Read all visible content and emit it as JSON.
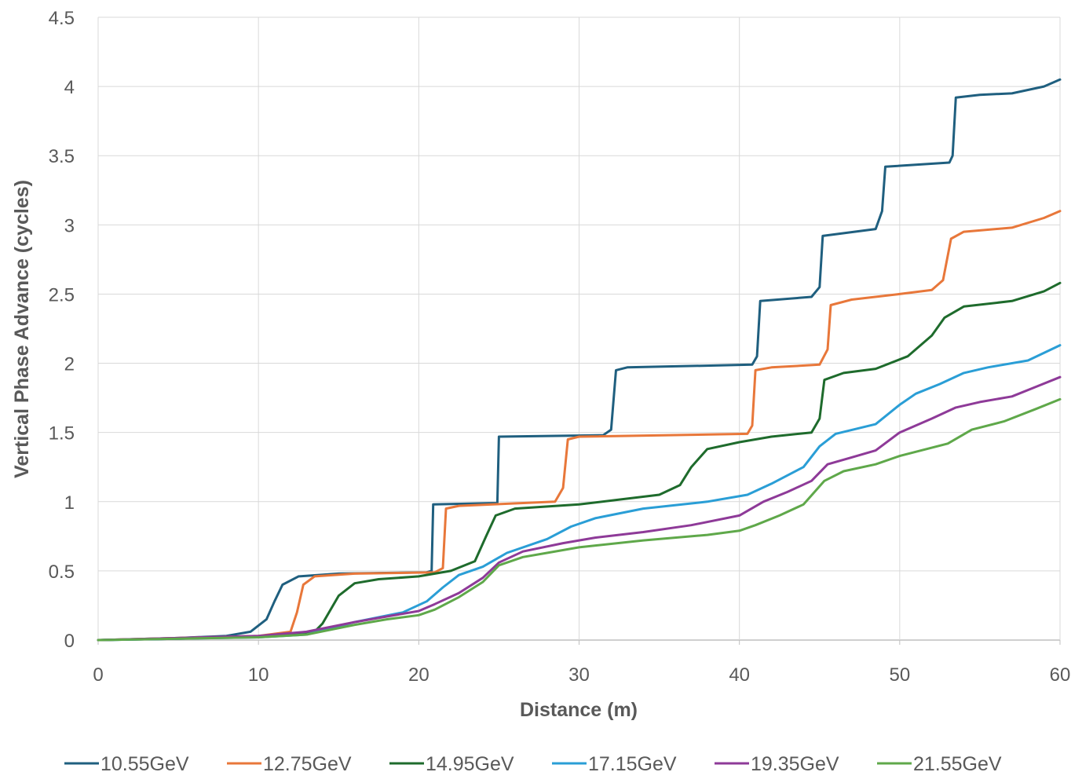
{
  "chart_data": {
    "type": "line",
    "title": "",
    "xlabel": "Distance (m)",
    "ylabel": "Vertical Phase Advance (cycles)",
    "xlim": [
      0,
      60
    ],
    "ylim": [
      0,
      4.5
    ],
    "x_ticks": [
      "0",
      "10",
      "20",
      "30",
      "40",
      "50",
      "60"
    ],
    "y_ticks": [
      "0",
      "0.5",
      "1",
      "1.5",
      "2",
      "2.5",
      "3",
      "3.5",
      "4",
      "4.5"
    ],
    "grid": "on",
    "legend_position": "bottom",
    "series": [
      {
        "name": "10.55GeV",
        "color": "#1f5f7f",
        "points": [
          [
            0,
            0
          ],
          [
            5,
            0.015
          ],
          [
            8,
            0.03
          ],
          [
            9.5,
            0.06
          ],
          [
            10.5,
            0.15
          ],
          [
            11,
            0.28
          ],
          [
            11.5,
            0.4
          ],
          [
            12.5,
            0.46
          ],
          [
            15,
            0.48
          ],
          [
            20.5,
            0.49
          ],
          [
            20.8,
            0.5
          ],
          [
            20.9,
            0.98
          ],
          [
            24.9,
            0.99
          ],
          [
            25.0,
            1.47
          ],
          [
            31.5,
            1.48
          ],
          [
            32.0,
            1.52
          ],
          [
            32.3,
            1.95
          ],
          [
            33,
            1.97
          ],
          [
            40.8,
            1.99
          ],
          [
            41.1,
            2.05
          ],
          [
            41.3,
            2.45
          ],
          [
            44.5,
            2.48
          ],
          [
            45.0,
            2.55
          ],
          [
            45.2,
            2.92
          ],
          [
            48.5,
            2.97
          ],
          [
            48.9,
            3.1
          ],
          [
            49.1,
            3.42
          ],
          [
            53.1,
            3.45
          ],
          [
            53.3,
            3.5
          ],
          [
            53.5,
            3.92
          ],
          [
            55,
            3.94
          ],
          [
            57,
            3.95
          ],
          [
            59,
            4.0
          ],
          [
            60,
            4.05
          ]
        ]
      },
      {
        "name": "12.75GeV",
        "color": "#e8773a",
        "points": [
          [
            0,
            0
          ],
          [
            5,
            0.015
          ],
          [
            10,
            0.03
          ],
          [
            12,
            0.06
          ],
          [
            12.4,
            0.2
          ],
          [
            12.8,
            0.4
          ],
          [
            13.5,
            0.46
          ],
          [
            16,
            0.48
          ],
          [
            21,
            0.49
          ],
          [
            21.5,
            0.52
          ],
          [
            21.7,
            0.95
          ],
          [
            22.5,
            0.97
          ],
          [
            28.5,
            1.0
          ],
          [
            29.0,
            1.1
          ],
          [
            29.3,
            1.45
          ],
          [
            30,
            1.47
          ],
          [
            40.5,
            1.49
          ],
          [
            40.8,
            1.55
          ],
          [
            41.0,
            1.95
          ],
          [
            42,
            1.97
          ],
          [
            45,
            1.99
          ],
          [
            45.5,
            2.1
          ],
          [
            45.7,
            2.42
          ],
          [
            47,
            2.46
          ],
          [
            50,
            2.5
          ],
          [
            52,
            2.53
          ],
          [
            52.7,
            2.6
          ],
          [
            53.2,
            2.9
          ],
          [
            54,
            2.95
          ],
          [
            57,
            2.98
          ],
          [
            59,
            3.05
          ],
          [
            60,
            3.1
          ]
        ]
      },
      {
        "name": "14.95GeV",
        "color": "#1e6b2c",
        "points": [
          [
            0,
            0
          ],
          [
            5,
            0.01
          ],
          [
            10,
            0.025
          ],
          [
            13.5,
            0.06
          ],
          [
            14,
            0.12
          ],
          [
            15,
            0.32
          ],
          [
            16,
            0.41
          ],
          [
            17.5,
            0.44
          ],
          [
            20,
            0.46
          ],
          [
            22,
            0.5
          ],
          [
            23.5,
            0.57
          ],
          [
            24.2,
            0.75
          ],
          [
            24.8,
            0.9
          ],
          [
            26,
            0.95
          ],
          [
            30,
            0.98
          ],
          [
            35,
            1.05
          ],
          [
            36.3,
            1.12
          ],
          [
            37,
            1.25
          ],
          [
            38,
            1.38
          ],
          [
            40,
            1.43
          ],
          [
            42,
            1.47
          ],
          [
            44.5,
            1.5
          ],
          [
            45.0,
            1.6
          ],
          [
            45.3,
            1.88
          ],
          [
            46.5,
            1.93
          ],
          [
            48.5,
            1.96
          ],
          [
            50.5,
            2.05
          ],
          [
            52,
            2.2
          ],
          [
            52.8,
            2.33
          ],
          [
            54,
            2.41
          ],
          [
            57,
            2.45
          ],
          [
            59,
            2.52
          ],
          [
            60,
            2.58
          ]
        ]
      },
      {
        "name": "17.15GeV",
        "color": "#2a9ed6",
        "points": [
          [
            0,
            0
          ],
          [
            10,
            0.02
          ],
          [
            13,
            0.04
          ],
          [
            16,
            0.13
          ],
          [
            19,
            0.2
          ],
          [
            20.5,
            0.28
          ],
          [
            21.5,
            0.38
          ],
          [
            22.5,
            0.47
          ],
          [
            24,
            0.53
          ],
          [
            25.5,
            0.63
          ],
          [
            28,
            0.73
          ],
          [
            29.5,
            0.82
          ],
          [
            31,
            0.88
          ],
          [
            34,
            0.95
          ],
          [
            38,
            1.0
          ],
          [
            40.5,
            1.05
          ],
          [
            42,
            1.13
          ],
          [
            44,
            1.25
          ],
          [
            45,
            1.4
          ],
          [
            46,
            1.49
          ],
          [
            48.5,
            1.56
          ],
          [
            50,
            1.7
          ],
          [
            51,
            1.78
          ],
          [
            52.5,
            1.85
          ],
          [
            54,
            1.93
          ],
          [
            55.5,
            1.97
          ],
          [
            58,
            2.02
          ],
          [
            60,
            2.13
          ]
        ]
      },
      {
        "name": "19.35GeV",
        "color": "#8e3a98",
        "points": [
          [
            0,
            0
          ],
          [
            10,
            0.03
          ],
          [
            13,
            0.06
          ],
          [
            16,
            0.13
          ],
          [
            18,
            0.17
          ],
          [
            20,
            0.21
          ],
          [
            21,
            0.26
          ],
          [
            22.5,
            0.34
          ],
          [
            24,
            0.45
          ],
          [
            25,
            0.56
          ],
          [
            26.5,
            0.64
          ],
          [
            29,
            0.7
          ],
          [
            31,
            0.74
          ],
          [
            34,
            0.78
          ],
          [
            37,
            0.83
          ],
          [
            40,
            0.9
          ],
          [
            41.5,
            1.0
          ],
          [
            43,
            1.07
          ],
          [
            44.5,
            1.15
          ],
          [
            45.5,
            1.27
          ],
          [
            47,
            1.32
          ],
          [
            48.5,
            1.37
          ],
          [
            50,
            1.5
          ],
          [
            52,
            1.6
          ],
          [
            53.5,
            1.68
          ],
          [
            55,
            1.72
          ],
          [
            57,
            1.76
          ],
          [
            58.5,
            1.83
          ],
          [
            60,
            1.9
          ]
        ]
      },
      {
        "name": "21.55GeV",
        "color": "#5fa84a",
        "points": [
          [
            0,
            0
          ],
          [
            10,
            0.02
          ],
          [
            13,
            0.04
          ],
          [
            16,
            0.11
          ],
          [
            18,
            0.15
          ],
          [
            20,
            0.18
          ],
          [
            21,
            0.22
          ],
          [
            22.5,
            0.31
          ],
          [
            24,
            0.42
          ],
          [
            25,
            0.54
          ],
          [
            26.5,
            0.6
          ],
          [
            28,
            0.63
          ],
          [
            30,
            0.67
          ],
          [
            34,
            0.72
          ],
          [
            38,
            0.76
          ],
          [
            40,
            0.79
          ],
          [
            41,
            0.83
          ],
          [
            42.5,
            0.9
          ],
          [
            44,
            0.98
          ],
          [
            45.3,
            1.15
          ],
          [
            46.5,
            1.22
          ],
          [
            48.5,
            1.27
          ],
          [
            50,
            1.33
          ],
          [
            53,
            1.42
          ],
          [
            54.5,
            1.52
          ],
          [
            56.5,
            1.58
          ],
          [
            58.5,
            1.67
          ],
          [
            60,
            1.74
          ]
        ]
      }
    ]
  }
}
